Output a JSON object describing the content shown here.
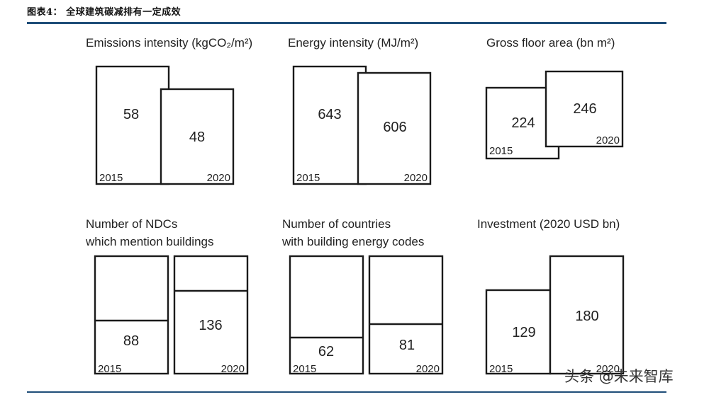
{
  "header": {
    "title": "图表4：  全球建筑碳减排有一定成效"
  },
  "watermark": {
    "text": "头条 @未来智库"
  },
  "chart_data": [
    {
      "type": "bar",
      "title": "Emissions intensity (kgCO₂/m²)",
      "categories": [
        "2015",
        "2020"
      ],
      "values": [
        58,
        48
      ]
    },
    {
      "type": "bar",
      "title": "Energy intensity (MJ/m²)",
      "categories": [
        "2015",
        "2020"
      ],
      "values": [
        643,
        606
      ]
    },
    {
      "type": "bar",
      "title": "Gross floor area (bn m²)",
      "categories": [
        "2015",
        "2020"
      ],
      "values": [
        224,
        246
      ]
    },
    {
      "type": "bar",
      "title_lines": [
        "Number of NDCs",
        "which mention buildings"
      ],
      "categories": [
        "2015",
        "2020"
      ],
      "values": [
        88,
        136
      ]
    },
    {
      "type": "bar",
      "title_lines": [
        "Number of countries",
        "with building energy codes"
      ],
      "categories": [
        "2015",
        "2020"
      ],
      "values": [
        62,
        81
      ]
    },
    {
      "type": "bar",
      "title": "Investment (2020 USD bn)",
      "categories": [
        "2015",
        "2020"
      ],
      "values": [
        129,
        180
      ]
    }
  ]
}
